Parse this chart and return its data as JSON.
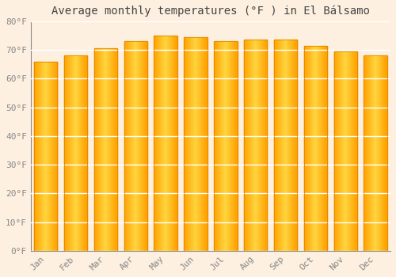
{
  "title": "Average monthly temperatures (°F ) in El Bálsamo",
  "months": [
    "Jan",
    "Feb",
    "Mar",
    "Apr",
    "May",
    "Jun",
    "Jul",
    "Aug",
    "Sep",
    "Oct",
    "Nov",
    "Dec"
  ],
  "values": [
    66,
    68,
    70.5,
    73,
    75,
    74.5,
    73,
    73.5,
    73.5,
    71.5,
    69.5,
    68
  ],
  "ylim": [
    0,
    80
  ],
  "ytick_step": 10,
  "background_color": "#fdf0e0",
  "plot_bg_color": "#fdf0e0",
  "grid_color": "#ffffff",
  "title_fontsize": 10,
  "tick_fontsize": 8,
  "bar_color_center": "#FFD060",
  "bar_color_edge": "#F5A000",
  "bar_edge_color": "#E08800",
  "spine_color": "#aaaaaa",
  "tick_color": "#888888",
  "title_color": "#444444"
}
